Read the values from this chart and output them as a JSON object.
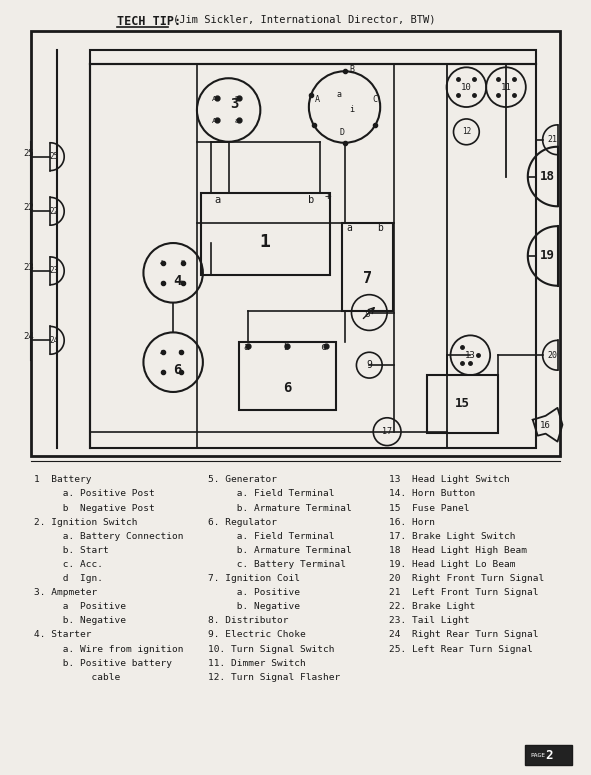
{
  "title": "TECH TIP:",
  "subtitle": "(Jim Sickler, International Director, BTW)",
  "background_color": "#f0ede8",
  "line_color": "#1a1a1a",
  "legend_col1": [
    "1  Battery",
    "     a. Positive Post",
    "     b  Negative Post",
    "2. Ignition Switch",
    "     a. Battery Connection",
    "     b. Start",
    "     c. Acc.",
    "     d  Ign.",
    "3. Ampmeter",
    "     a  Positive",
    "     b. Negative",
    "4. Starter",
    "     a. Wire from ignition",
    "     b. Positive battery",
    "          cable"
  ],
  "legend_col2": [
    "5. Generator",
    "     a. Field Terminal",
    "     b. Armature Terminal",
    "6. Regulator",
    "     a. Field Terminal",
    "     b. Armature Terminal",
    "     c. Battery Terminal",
    "7. Ignition Coil",
    "     a. Positive",
    "     b. Negative",
    "8. Distributor",
    "9. Electric Choke",
    "10. Turn Signal Switch",
    "11. Dimmer Switch",
    "12. Turn Signal Flasher"
  ],
  "legend_col3": [
    "13  Head Light Switch",
    "14. Horn Button",
    "15  Fuse Panel",
    "16. Horn",
    "17. Brake Light Switch",
    "18  Head Light High Beam",
    "19. Head Light Lo Beam",
    "20  Right Front Turn Signal",
    "21  Left Front Turn Signal",
    "22. Brake Light",
    "23. Tail Light",
    "24  Right Rear Turn Signal",
    "25. Left Rear Turn Signal"
  ],
  "page_num": "2"
}
